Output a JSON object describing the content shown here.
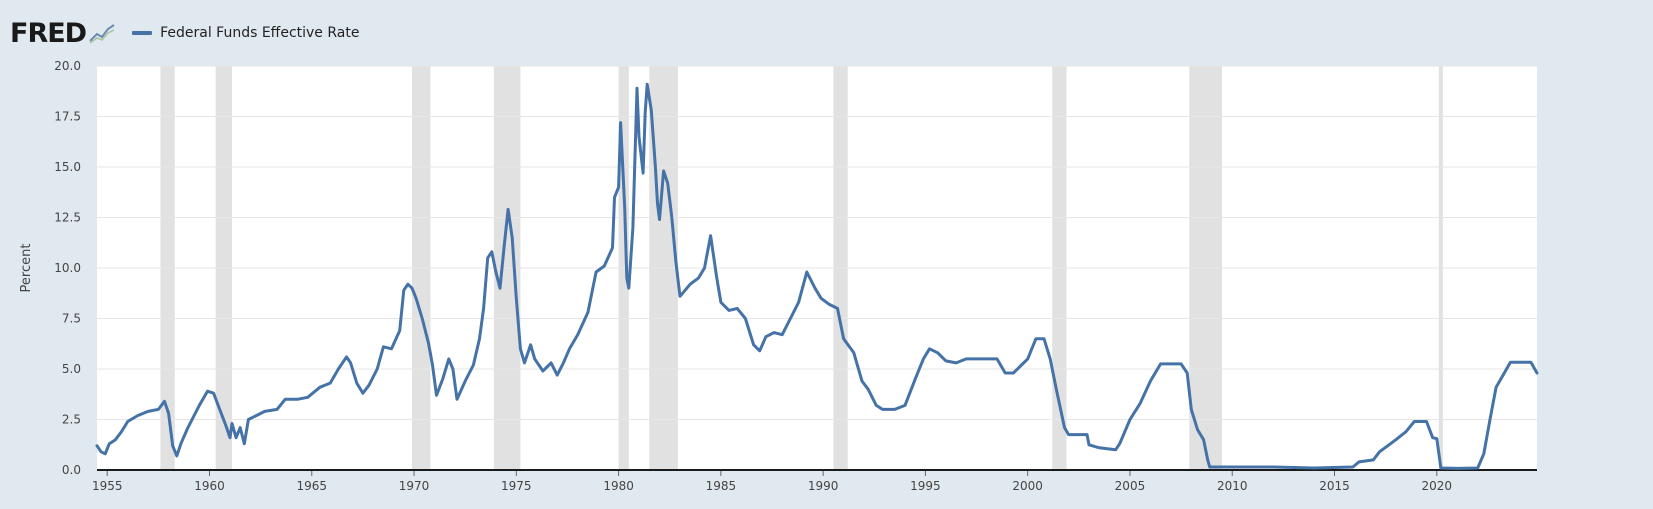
{
  "brand": {
    "logo_text": "FRED",
    "logo_icon": "line-chart-icon"
  },
  "colors": {
    "series": "#4572a7",
    "recession": "#e1e1e1",
    "frame": "#e1e9f0",
    "grid": "#e6e6e6"
  },
  "chart_data": {
    "type": "line",
    "ylabel": "Percent",
    "xlim": [
      1954.5,
      2024.9
    ],
    "ylim": [
      0,
      20
    ],
    "yticks": [
      {
        "value": 0,
        "label": "0.0"
      },
      {
        "value": 2.5,
        "label": "2.5"
      },
      {
        "value": 5,
        "label": "5.0"
      },
      {
        "value": 7.5,
        "label": "7.5"
      },
      {
        "value": 10,
        "label": "10.0"
      },
      {
        "value": 12.5,
        "label": "12.5"
      },
      {
        "value": 15,
        "label": "15.0"
      },
      {
        "value": 17.5,
        "label": "17.5"
      },
      {
        "value": 20,
        "label": "20.0"
      }
    ],
    "xticks": [
      {
        "value": 1955,
        "label": "1955"
      },
      {
        "value": 1960,
        "label": "1960"
      },
      {
        "value": 1965,
        "label": "1965"
      },
      {
        "value": 1970,
        "label": "1970"
      },
      {
        "value": 1975,
        "label": "1975"
      },
      {
        "value": 1980,
        "label": "1980"
      },
      {
        "value": 1985,
        "label": "1985"
      },
      {
        "value": 1990,
        "label": "1990"
      },
      {
        "value": 1995,
        "label": "1995"
      },
      {
        "value": 2000,
        "label": "2000"
      },
      {
        "value": 2005,
        "label": "2005"
      },
      {
        "value": 2010,
        "label": "2010"
      },
      {
        "value": 2015,
        "label": "2015"
      },
      {
        "value": 2020,
        "label": "2020"
      }
    ],
    "grid": "horizontal",
    "legend_position": "top-left",
    "recessions": [
      [
        1957.6,
        1958.3
      ],
      [
        1960.3,
        1961.1
      ],
      [
        1969.9,
        1970.8
      ],
      [
        1973.9,
        1975.2
      ],
      [
        1980.0,
        1980.5
      ],
      [
        1981.5,
        1982.9
      ],
      [
        1990.5,
        1991.2
      ],
      [
        2001.2,
        2001.9
      ],
      [
        2007.9,
        2009.5
      ],
      [
        2020.1,
        2020.3
      ]
    ],
    "series": [
      {
        "name": "Federal Funds Effective Rate",
        "points": [
          [
            1954.5,
            1.2
          ],
          [
            1954.7,
            0.9
          ],
          [
            1954.9,
            0.8
          ],
          [
            1955.1,
            1.3
          ],
          [
            1955.4,
            1.5
          ],
          [
            1955.7,
            1.9
          ],
          [
            1956.0,
            2.4
          ],
          [
            1956.5,
            2.7
          ],
          [
            1957.0,
            2.9
          ],
          [
            1957.5,
            3.0
          ],
          [
            1957.8,
            3.4
          ],
          [
            1958.0,
            2.8
          ],
          [
            1958.2,
            1.2
          ],
          [
            1958.4,
            0.7
          ],
          [
            1958.6,
            1.3
          ],
          [
            1958.9,
            2.0
          ],
          [
            1959.2,
            2.6
          ],
          [
            1959.5,
            3.2
          ],
          [
            1959.9,
            3.9
          ],
          [
            1960.2,
            3.8
          ],
          [
            1960.5,
            3.0
          ],
          [
            1960.8,
            2.2
          ],
          [
            1961.0,
            1.6
          ],
          [
            1961.1,
            2.3
          ],
          [
            1961.3,
            1.6
          ],
          [
            1961.5,
            2.1
          ],
          [
            1961.7,
            1.3
          ],
          [
            1961.9,
            2.5
          ],
          [
            1962.3,
            2.7
          ],
          [
            1962.7,
            2.9
          ],
          [
            1963.3,
            3.0
          ],
          [
            1963.7,
            3.5
          ],
          [
            1964.3,
            3.5
          ],
          [
            1964.8,
            3.6
          ],
          [
            1965.4,
            4.1
          ],
          [
            1965.9,
            4.3
          ],
          [
            1966.3,
            5.0
          ],
          [
            1966.7,
            5.6
          ],
          [
            1966.9,
            5.3
          ],
          [
            1967.2,
            4.3
          ],
          [
            1967.5,
            3.8
          ],
          [
            1967.8,
            4.2
          ],
          [
            1968.2,
            5.0
          ],
          [
            1968.5,
            6.1
          ],
          [
            1968.9,
            6.0
          ],
          [
            1969.3,
            6.9
          ],
          [
            1969.5,
            8.9
          ],
          [
            1969.7,
            9.2
          ],
          [
            1969.9,
            9.0
          ],
          [
            1970.1,
            8.5
          ],
          [
            1970.4,
            7.5
          ],
          [
            1970.7,
            6.3
          ],
          [
            1970.9,
            5.2
          ],
          [
            1971.1,
            3.7
          ],
          [
            1971.4,
            4.5
          ],
          [
            1971.7,
            5.5
          ],
          [
            1971.9,
            5.0
          ],
          [
            1972.1,
            3.5
          ],
          [
            1972.5,
            4.4
          ],
          [
            1972.9,
            5.2
          ],
          [
            1973.2,
            6.5
          ],
          [
            1973.4,
            8.0
          ],
          [
            1973.6,
            10.5
          ],
          [
            1973.8,
            10.8
          ],
          [
            1974.0,
            9.8
          ],
          [
            1974.2,
            9.0
          ],
          [
            1974.4,
            11.0
          ],
          [
            1974.6,
            12.9
          ],
          [
            1974.8,
            11.5
          ],
          [
            1975.0,
            8.5
          ],
          [
            1975.2,
            6.0
          ],
          [
            1975.4,
            5.3
          ],
          [
            1975.7,
            6.2
          ],
          [
            1975.9,
            5.5
          ],
          [
            1976.3,
            4.9
          ],
          [
            1976.7,
            5.3
          ],
          [
            1977.0,
            4.7
          ],
          [
            1977.3,
            5.3
          ],
          [
            1977.6,
            6.0
          ],
          [
            1978.0,
            6.7
          ],
          [
            1978.5,
            7.8
          ],
          [
            1978.9,
            9.8
          ],
          [
            1979.3,
            10.1
          ],
          [
            1979.7,
            11.0
          ],
          [
            1979.8,
            13.5
          ],
          [
            1980.0,
            14.0
          ],
          [
            1980.1,
            17.2
          ],
          [
            1980.3,
            13.0
          ],
          [
            1980.4,
            9.5
          ],
          [
            1980.5,
            9.0
          ],
          [
            1980.7,
            12.0
          ],
          [
            1980.9,
            18.9
          ],
          [
            1981.0,
            16.5
          ],
          [
            1981.2,
            14.7
          ],
          [
            1981.3,
            17.7
          ],
          [
            1981.4,
            19.1
          ],
          [
            1981.6,
            17.8
          ],
          [
            1981.8,
            15.0
          ],
          [
            1981.9,
            13.2
          ],
          [
            1982.0,
            12.4
          ],
          [
            1982.2,
            14.8
          ],
          [
            1982.4,
            14.2
          ],
          [
            1982.6,
            12.5
          ],
          [
            1982.8,
            10.3
          ],
          [
            1983.0,
            8.6
          ],
          [
            1983.5,
            9.2
          ],
          [
            1983.9,
            9.5
          ],
          [
            1984.2,
            10.0
          ],
          [
            1984.5,
            11.6
          ],
          [
            1984.8,
            9.5
          ],
          [
            1985.0,
            8.3
          ],
          [
            1985.4,
            7.9
          ],
          [
            1985.8,
            8.0
          ],
          [
            1986.2,
            7.5
          ],
          [
            1986.6,
            6.2
          ],
          [
            1986.9,
            5.9
          ],
          [
            1987.2,
            6.6
          ],
          [
            1987.6,
            6.8
          ],
          [
            1988.0,
            6.7
          ],
          [
            1988.4,
            7.5
          ],
          [
            1988.8,
            8.3
          ],
          [
            1989.2,
            9.8
          ],
          [
            1989.6,
            9.0
          ],
          [
            1989.9,
            8.5
          ],
          [
            1990.3,
            8.2
          ],
          [
            1990.7,
            8.0
          ],
          [
            1991.0,
            6.5
          ],
          [
            1991.5,
            5.8
          ],
          [
            1991.9,
            4.4
          ],
          [
            1992.2,
            4.0
          ],
          [
            1992.6,
            3.2
          ],
          [
            1992.9,
            3.0
          ],
          [
            1993.5,
            3.0
          ],
          [
            1994.0,
            3.2
          ],
          [
            1994.5,
            4.5
          ],
          [
            1994.9,
            5.5
          ],
          [
            1995.2,
            6.0
          ],
          [
            1995.6,
            5.8
          ],
          [
            1996.0,
            5.4
          ],
          [
            1996.5,
            5.3
          ],
          [
            1997.0,
            5.5
          ],
          [
            1997.5,
            5.5
          ],
          [
            1998.0,
            5.5
          ],
          [
            1998.5,
            5.5
          ],
          [
            1998.9,
            4.8
          ],
          [
            1999.3,
            4.8
          ],
          [
            1999.7,
            5.2
          ],
          [
            2000.0,
            5.5
          ],
          [
            2000.4,
            6.5
          ],
          [
            2000.8,
            6.5
          ],
          [
            2001.1,
            5.5
          ],
          [
            2001.4,
            4.0
          ],
          [
            2001.8,
            2.1
          ],
          [
            2002.0,
            1.75
          ],
          [
            2002.9,
            1.75
          ],
          [
            2003.0,
            1.25
          ],
          [
            2003.5,
            1.1
          ],
          [
            2004.3,
            1.0
          ],
          [
            2004.5,
            1.3
          ],
          [
            2005.0,
            2.5
          ],
          [
            2005.5,
            3.3
          ],
          [
            2006.0,
            4.4
          ],
          [
            2006.5,
            5.25
          ],
          [
            2007.5,
            5.25
          ],
          [
            2007.8,
            4.8
          ],
          [
            2008.0,
            3.0
          ],
          [
            2008.3,
            2.0
          ],
          [
            2008.6,
            1.5
          ],
          [
            2008.8,
            0.5
          ],
          [
            2008.9,
            0.15
          ],
          [
            2010.0,
            0.15
          ],
          [
            2012.0,
            0.15
          ],
          [
            2014.0,
            0.1
          ],
          [
            2015.9,
            0.15
          ],
          [
            2016.2,
            0.4
          ],
          [
            2016.9,
            0.5
          ],
          [
            2017.2,
            0.9
          ],
          [
            2017.6,
            1.2
          ],
          [
            2018.0,
            1.5
          ],
          [
            2018.5,
            1.9
          ],
          [
            2018.9,
            2.4
          ],
          [
            2019.5,
            2.4
          ],
          [
            2019.8,
            1.6
          ],
          [
            2020.0,
            1.55
          ],
          [
            2020.2,
            0.1
          ],
          [
            2021.0,
            0.08
          ],
          [
            2022.0,
            0.1
          ],
          [
            2022.3,
            0.8
          ],
          [
            2022.6,
            2.5
          ],
          [
            2022.9,
            4.1
          ],
          [
            2023.3,
            4.8
          ],
          [
            2023.6,
            5.33
          ],
          [
            2024.6,
            5.33
          ],
          [
            2024.9,
            4.8
          ]
        ]
      }
    ]
  }
}
